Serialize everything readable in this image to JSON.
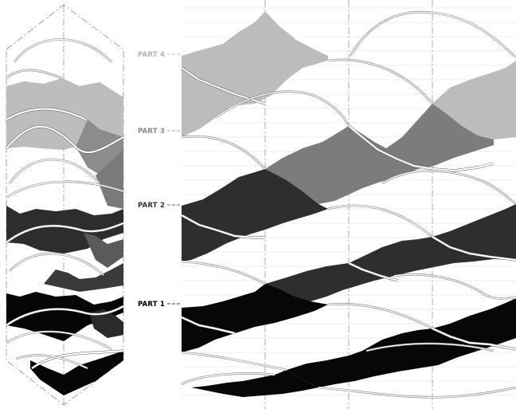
{
  "parts": [
    {
      "id": "part-4",
      "label": "PART 4",
      "color": "#bdbdbd"
    },
    {
      "id": "part-3",
      "label": "PART 3",
      "color": "#7d7d7d"
    },
    {
      "id": "part-2",
      "label": "PART 2",
      "color": "#2f2f2f"
    },
    {
      "id": "part-1",
      "label": "PART 1",
      "color": "#070707"
    }
  ],
  "label_colors": {
    "part-4": "#b3b3b3",
    "part-3": "#8a8a8a",
    "part-2": "#333333",
    "part-1": "#000000"
  }
}
